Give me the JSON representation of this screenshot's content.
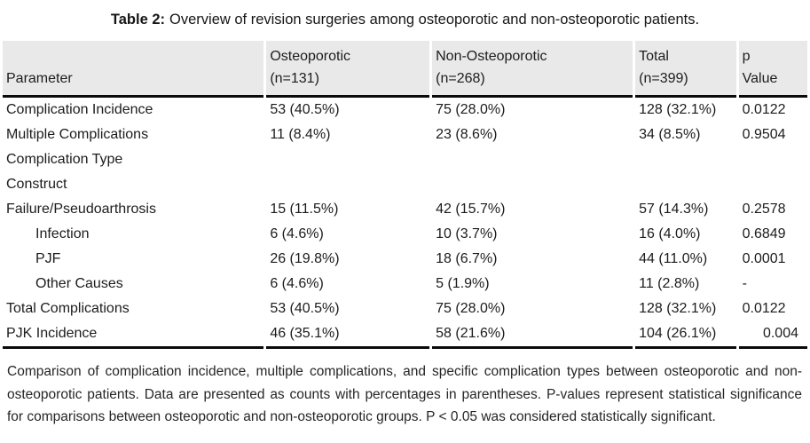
{
  "title": {
    "label": "Table 2:",
    "text": "Overview of revision surgeries among osteoporotic and non-osteoporotic patients."
  },
  "table": {
    "columns": [
      {
        "title": "Parameter",
        "sub": ""
      },
      {
        "title": "Osteoporotic",
        "sub": "(n=131)"
      },
      {
        "title": "Non-Osteoporotic",
        "sub": "(n=268)"
      },
      {
        "title": "Total",
        "sub": "(n=399)"
      },
      {
        "title": "p",
        "sub": "Value"
      }
    ],
    "rows": [
      {
        "parameter": "Complication Incidence",
        "indent": false,
        "osteoporotic": "53 (40.5%)",
        "non_osteoporotic": "75 (28.0%)",
        "total": "128 (32.1%)",
        "p_value": "0.0122",
        "p_align": "left"
      },
      {
        "parameter": "Multiple Complications",
        "indent": false,
        "osteoporotic": "11 (8.4%)",
        "non_osteoporotic": "23 (8.6%)",
        "total": "34 (8.5%)",
        "p_value": "0.9504",
        "p_align": "left"
      },
      {
        "parameter": "Complication Type",
        "indent": false,
        "osteoporotic": "",
        "non_osteoporotic": "",
        "total": "",
        "p_value": "",
        "p_align": "left"
      },
      {
        "parameter": "Construct",
        "indent": false,
        "osteoporotic": "",
        "non_osteoporotic": "",
        "total": "",
        "p_value": "",
        "p_align": "left"
      },
      {
        "parameter": "Failure/Pseudoarthrosis",
        "indent": false,
        "osteoporotic": "15 (11.5%)",
        "non_osteoporotic": "42 (15.7%)",
        "total": "57 (14.3%)",
        "p_value": "0.2578",
        "p_align": "left"
      },
      {
        "parameter": "Infection",
        "indent": true,
        "osteoporotic": "6 (4.6%)",
        "non_osteoporotic": "10 (3.7%)",
        "total": "16 (4.0%)",
        "p_value": "0.6849",
        "p_align": "left"
      },
      {
        "parameter": "PJF",
        "indent": true,
        "osteoporotic": "26 (19.8%)",
        "non_osteoporotic": "18 (6.7%)",
        "total": "44 (11.0%)",
        "p_value": "0.0001",
        "p_align": "left"
      },
      {
        "parameter": "Other Causes",
        "indent": true,
        "osteoporotic": "6 (4.6%)",
        "non_osteoporotic": "5 (1.9%)",
        "total": "11 (2.8%)",
        "p_value": "-",
        "p_align": "left"
      },
      {
        "parameter": "Total Complications",
        "indent": false,
        "osteoporotic": "53 (40.5%)",
        "non_osteoporotic": "75 (28.0%)",
        "total": "128 (32.1%)",
        "p_value": "0.0122",
        "p_align": "left"
      },
      {
        "parameter": "PJK Incidence",
        "indent": false,
        "osteoporotic": "46 (35.1%)",
        "non_osteoporotic": "58 (21.6%)",
        "total": "104 (26.1%)",
        "p_value": "0.004",
        "p_align": "right"
      }
    ]
  },
  "footnote": {
    "text": "Comparison of complication incidence, multiple complications, and specific complication types between osteoporotic and non-osteoporotic patients. Data are presented as counts with percentages in parentheses. P-values represent statistical significance for comparisons between osteoporotic and non-osteoporotic groups. P < 0.05 was considered statistically significant."
  },
  "colors": {
    "header_bg": "#e9e9e9",
    "rule": "#0a0a0a",
    "text": "#1c1c1c"
  }
}
